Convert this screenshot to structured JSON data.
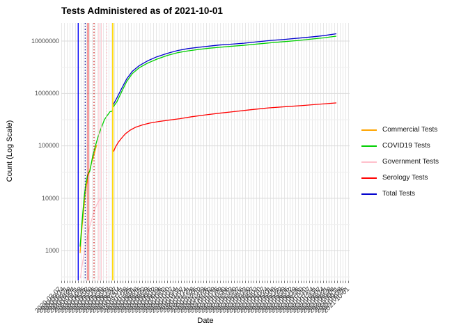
{
  "title": "Tests Administered as of 2021-10-01",
  "axes": {
    "x_title": "Date",
    "y_title": "Count (Log Scale)"
  },
  "legend": {
    "position": "right",
    "items": [
      {
        "label": "Commercial Tests",
        "color": "#FFA500"
      },
      {
        "label": "COVID19 Tests",
        "color": "#00CF00"
      },
      {
        "label": "Government Tests",
        "color": "#FFC0CB"
      },
      {
        "label": "Serology Tests",
        "color": "#FF0000"
      },
      {
        "label": "Total Tests",
        "color": "#0000CD"
      }
    ]
  },
  "chart_data": {
    "type": "line",
    "title": "Tests Administered as of 2021-10-01",
    "xlabel": "Date",
    "ylabel": "Count (Log Scale)",
    "y_scale": "log10",
    "ylim": [
      280,
      22000000
    ],
    "y_ticks": [
      1000,
      10000,
      100000,
      1000000,
      10000000
    ],
    "y_tick_labels": [
      "1000",
      "10000",
      "100000",
      "1000000",
      "10000000"
    ],
    "x_axis": {
      "start_date": "2020-03-07",
      "end_date": "2021-10-01",
      "step_days": 7
    },
    "legend_position": "right",
    "grid": "on",
    "colors": {
      "background": "#FFFFFF",
      "grid_vertical": "#E7E7E7",
      "grid_major": "#DBDBDB",
      "grid_minor": "#EFEFEF",
      "tick": "#7A7A7A",
      "axis_text": "#4D4D4D"
    },
    "vlines": [
      {
        "t": 0.0587,
        "color": "#0000F5",
        "style": "solid",
        "width": 1.4
      },
      {
        "t": 0.0829,
        "color": "#00008B",
        "style": "dotted",
        "width": 1.2
      },
      {
        "t": 0.0925,
        "color": "#E80000",
        "style": "solid",
        "width": 1.2
      },
      {
        "t": 0.1135,
        "color": "#C80000",
        "style": "dotted",
        "width": 1.2
      },
      {
        "t": 0.1304,
        "color": "#FFB6C1",
        "style": "solid",
        "width": 1.0
      },
      {
        "t": 0.1389,
        "color": "#FFC9D2",
        "style": "solid",
        "width": 1.0
      },
      {
        "t": 0.157,
        "color": "#FFB6C1",
        "style": "dotted",
        "width": 1.2
      },
      {
        "t": 0.1787,
        "color": "#FFD700",
        "style": "solid",
        "width": 1.8
      }
    ],
    "series": [
      {
        "name": "Commercial Tests",
        "color": "#FFA500",
        "points": [
          [
            0.0652,
            900
          ],
          [
            0.0676,
            1400
          ],
          [
            0.07,
            2100
          ],
          [
            0.0725,
            3000
          ],
          [
            0.0773,
            5600
          ],
          [
            0.0821,
            10500
          ],
          [
            0.087,
            17000
          ],
          [
            0.0918,
            25000
          ],
          [
            0.0966,
            31000
          ],
          [
            0.1014,
            40000
          ],
          [
            0.1063,
            50000
          ],
          [
            0.1111,
            60000
          ],
          [
            0.1159,
            75000
          ],
          [
            0.1208,
            95000
          ],
          [
            0.1232,
            105000
          ]
        ]
      },
      {
        "name": "Government Tests",
        "color": "#FFC0CB",
        "points": [
          [
            0.0664,
            300
          ],
          [
            0.07,
            430
          ],
          [
            0.0749,
            640
          ],
          [
            0.0797,
            900
          ],
          [
            0.0845,
            1250
          ],
          [
            0.0894,
            1700
          ],
          [
            0.0942,
            2300
          ],
          [
            0.099,
            2950
          ],
          [
            0.1039,
            3650
          ],
          [
            0.1087,
            4500
          ],
          [
            0.1135,
            5500
          ],
          [
            0.1184,
            6500
          ],
          [
            0.1232,
            7600
          ],
          [
            0.128,
            8600
          ],
          [
            0.1329,
            9300
          ],
          [
            0.1377,
            9800
          ]
        ]
      },
      {
        "name": "Serology Tests",
        "color": "#FF0000",
        "points": [
          [
            0.1812,
            78000
          ],
          [
            0.1884,
            96000
          ],
          [
            0.1981,
            118000
          ],
          [
            0.2101,
            143000
          ],
          [
            0.2222,
            170000
          ],
          [
            0.2391,
            200000
          ],
          [
            0.2585,
            228000
          ],
          [
            0.2826,
            252000
          ],
          [
            0.3068,
            272000
          ],
          [
            0.3382,
            292000
          ],
          [
            0.372,
            310000
          ],
          [
            0.4106,
            330000
          ],
          [
            0.4517,
            360000
          ],
          [
            0.5,
            390000
          ],
          [
            0.5483,
            420000
          ],
          [
            0.5966,
            450000
          ],
          [
            0.657,
            490000
          ],
          [
            0.7174,
            530000
          ],
          [
            0.7778,
            560000
          ],
          [
            0.8382,
            590000
          ],
          [
            0.8865,
            620000
          ],
          [
            0.9227,
            640000
          ],
          [
            0.9541,
            660000
          ]
        ]
      },
      {
        "name": "Total Tests",
        "color": "#0000CD",
        "points": [
          [
            0.1787,
            590000
          ],
          [
            0.1932,
            830000
          ],
          [
            0.2101,
            1270000
          ],
          [
            0.2271,
            1900000
          ],
          [
            0.2464,
            2650000
          ],
          [
            0.2705,
            3400000
          ],
          [
            0.2995,
            4200000
          ],
          [
            0.3309,
            5000000
          ],
          [
            0.3671,
            5800000
          ],
          [
            0.4034,
            6600000
          ],
          [
            0.4396,
            7200000
          ],
          [
            0.4758,
            7600000
          ],
          [
            0.5121,
            8000000
          ],
          [
            0.5483,
            8400000
          ],
          [
            0.5845,
            8700000
          ],
          [
            0.6329,
            9100000
          ],
          [
            0.6812,
            9700000
          ],
          [
            0.7295,
            10300000
          ],
          [
            0.7778,
            10800000
          ],
          [
            0.8261,
            11400000
          ],
          [
            0.8744,
            12100000
          ],
          [
            0.9106,
            12700000
          ],
          [
            0.9348,
            13300000
          ],
          [
            0.9541,
            13800000
          ]
        ]
      },
      {
        "name": "COVID19 Tests",
        "color": "#00CF00",
        "points": [
          [
            0.0652,
            1200
          ],
          [
            0.07,
            2600
          ],
          [
            0.0749,
            5500
          ],
          [
            0.0797,
            11000
          ],
          [
            0.0845,
            18000
          ],
          [
            0.0918,
            29000
          ],
          [
            0.099,
            33000
          ],
          [
            0.1087,
            63000
          ],
          [
            0.1184,
            100000
          ],
          [
            0.128,
            153000
          ],
          [
            0.1377,
            214000
          ],
          [
            0.1498,
            317000
          ],
          [
            0.1594,
            380000
          ],
          [
            0.1691,
            450000
          ],
          [
            0.1775,
            460000
          ],
          [
            0.1787,
            540000
          ],
          [
            0.1932,
            700000
          ],
          [
            0.2101,
            1100000
          ],
          [
            0.2271,
            1700000
          ],
          [
            0.2464,
            2400000
          ],
          [
            0.2705,
            3100000
          ],
          [
            0.2995,
            3800000
          ],
          [
            0.3309,
            4500000
          ],
          [
            0.3671,
            5300000
          ],
          [
            0.4034,
            6000000
          ],
          [
            0.4396,
            6500000
          ],
          [
            0.4758,
            6900000
          ],
          [
            0.5121,
            7300000
          ],
          [
            0.5483,
            7600000
          ],
          [
            0.5845,
            7900000
          ],
          [
            0.6329,
            8300000
          ],
          [
            0.6812,
            8800000
          ],
          [
            0.7295,
            9300000
          ],
          [
            0.7778,
            9800000
          ],
          [
            0.8261,
            10300000
          ],
          [
            0.8744,
            11000000
          ],
          [
            0.9106,
            11500000
          ],
          [
            0.9348,
            12000000
          ],
          [
            0.9541,
            12400000
          ]
        ]
      }
    ]
  }
}
